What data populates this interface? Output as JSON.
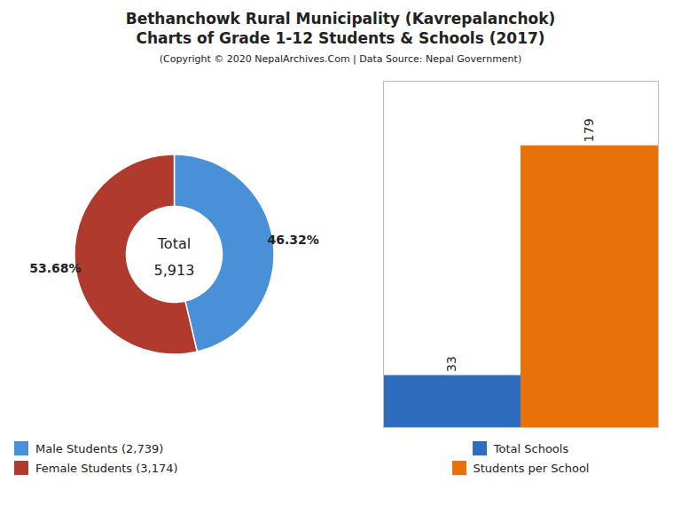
{
  "chart_data": [
    {
      "type": "pie",
      "title": "Bethanchowk Rural Municipality (Kavrepalanchok)\nCharts of Grade 1-12 Students & Schools (2017)",
      "subtitle": "(Copyright © 2020 NepalArchives.Com | Data Source: Nepal Government)",
      "categories": [
        "Male Students (2,739)",
        "Female Students (3,174)"
      ],
      "values": [
        46.32,
        53.68
      ],
      "value_labels": [
        "46.32%",
        "53.68%"
      ],
      "data_labels": true,
      "colors": [
        "#4a90d9",
        "#b03a2e"
      ],
      "annotations": [
        "Total",
        "5,913"
      ],
      "legend": "lower left"
    },
    {
      "type": "bar",
      "categories": [
        "Total Schools",
        "Students per School"
      ],
      "values": [
        33,
        179
      ],
      "colors": [
        "#2e6dbd",
        "#e8710a"
      ],
      "ylim": [
        0,
        220
      ],
      "data_labels": true,
      "tick_labels": false,
      "legend": "lower center"
    }
  ]
}
